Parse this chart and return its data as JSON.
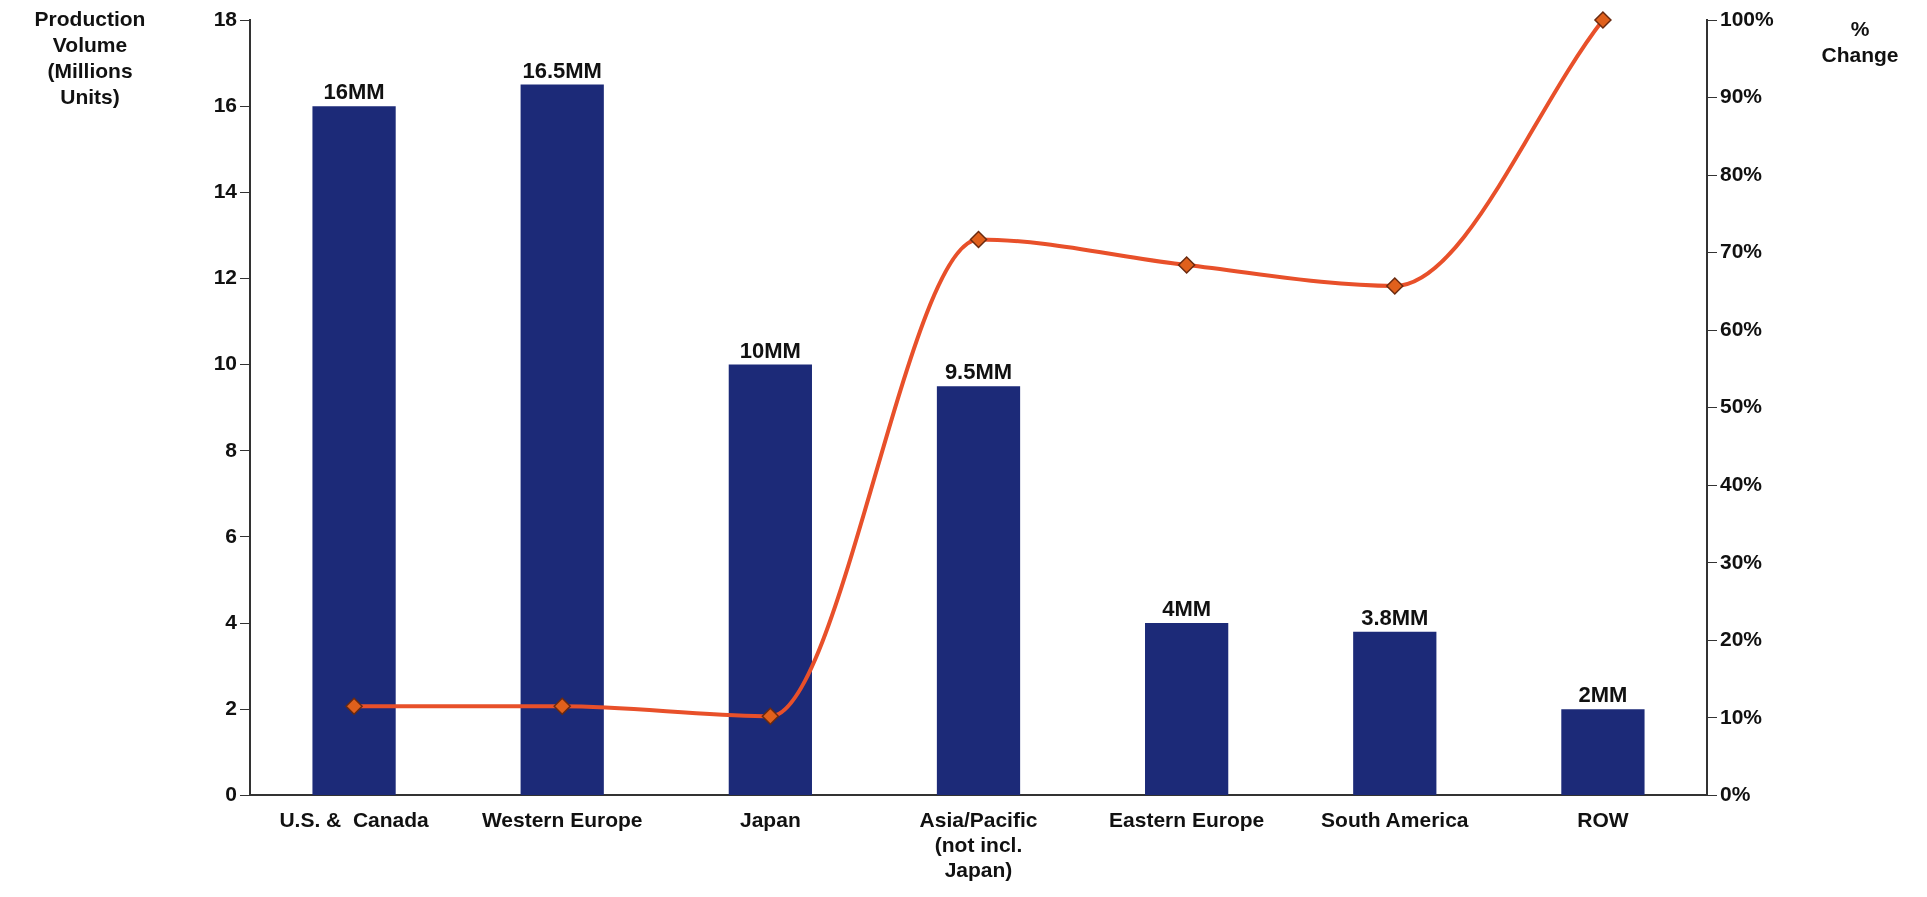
{
  "chart_data": {
    "type": "bar",
    "ylabel": "Production Volume (Millions Units)",
    "y2label": "% Change",
    "categories": [
      "U.S. &  Canada",
      "Western Europe",
      "Japan",
      "Asia/Pacific (not incl. Japan)",
      "Eastern Europe",
      "South America",
      "ROW"
    ],
    "series": [
      {
        "color": "#1c2a78",
        "values": [
          16,
          16.5,
          10,
          9.5,
          4,
          3.8,
          2
        ],
        "value_labels": [
          "16MM",
          "16.5MM",
          "10MM",
          "9.5MM",
          "4MM",
          "3.8MM",
          "2MM"
        ]
      },
      {
        "type": "line",
        "axis": "y2",
        "color": "#e8502a",
        "marker": "diamond",
        "values": [
          11.5,
          11.5,
          10.2,
          71.7,
          68.4,
          65.7,
          100
        ]
      }
    ],
    "ylim": [
      0,
      18
    ],
    "yticks": [
      0,
      2,
      4,
      6,
      8,
      10,
      12,
      14,
      16,
      18
    ],
    "y2lim": [
      0,
      100
    ],
    "y2ticks": [
      {
        "value": 0,
        "label": "0%"
      },
      {
        "value": 10,
        "label": "10%"
      },
      {
        "value": 20,
        "label": "20%"
      },
      {
        "value": 30,
        "label": "30%"
      },
      {
        "value": 40,
        "label": "40%"
      },
      {
        "value": 50,
        "label": "50%"
      },
      {
        "value": 60,
        "label": "60%"
      },
      {
        "value": 70,
        "label": "70%"
      },
      {
        "value": 80,
        "label": "80%"
      },
      {
        "value": 90,
        "label": "90%"
      },
      {
        "value": 100,
        "label": "100%"
      }
    ],
    "grid": false,
    "legend": false
  }
}
